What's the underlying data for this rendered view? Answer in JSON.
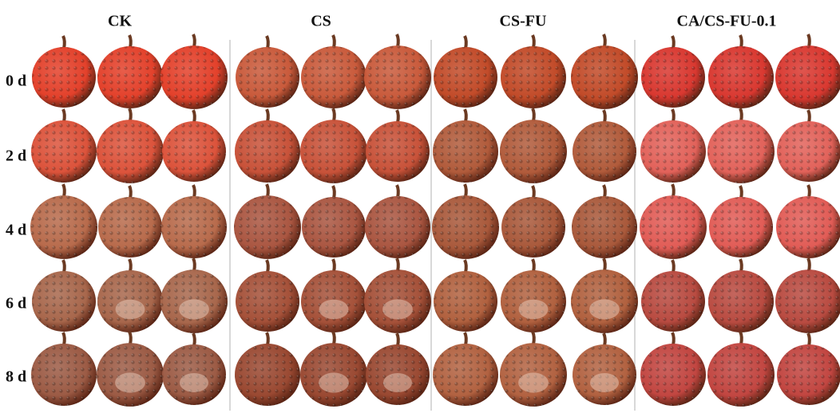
{
  "columns": [
    "CK",
    "CS",
    "CS-FU",
    "CA/CS-FU-0.1"
  ],
  "rows": [
    "0 d",
    "2 d",
    "4 d",
    "6 d",
    "8 d"
  ]
}
